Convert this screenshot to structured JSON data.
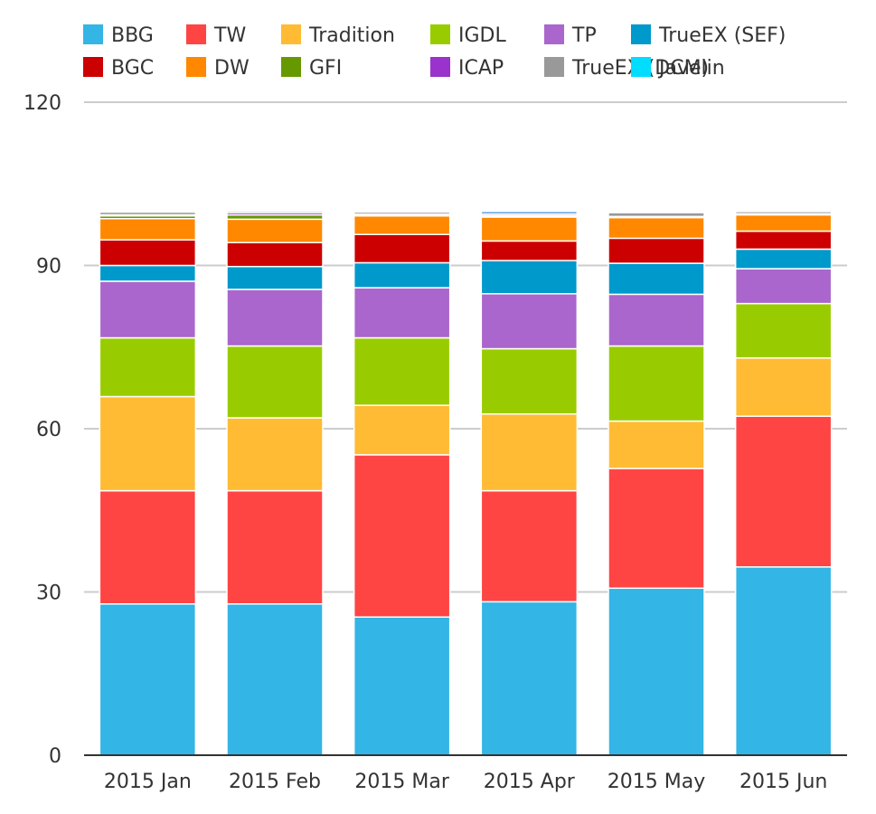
{
  "chart_data": {
    "type": "bar",
    "stacked": true,
    "categories": [
      "2015 Jan",
      "2015 Feb",
      "2015 Mar",
      "2015 Apr",
      "2015 May",
      "2015 Jun"
    ],
    "ylim": [
      0,
      120
    ],
    "yticks": [
      0,
      30,
      60,
      90,
      120
    ],
    "grid": true,
    "legend_position": "top",
    "series": [
      {
        "name": "BBG",
        "color": "#33B5E5",
        "values": [
          27.8,
          27.8,
          25.4,
          28.2,
          30.7,
          34.6
        ]
      },
      {
        "name": "TW",
        "color": "#FF4444",
        "values": [
          20.8,
          20.8,
          29.8,
          20.4,
          22.0,
          27.7
        ]
      },
      {
        "name": "Tradition",
        "color": "#FFBB33",
        "values": [
          17.3,
          13.4,
          9.1,
          14.1,
          8.7,
          10.7
        ]
      },
      {
        "name": "IGDL",
        "color": "#99CC00",
        "values": [
          10.8,
          13.2,
          12.4,
          12.0,
          13.8,
          10.0
        ]
      },
      {
        "name": "TP",
        "color": "#AA66CC",
        "values": [
          10.4,
          10.4,
          9.2,
          10.1,
          9.5,
          6.4
        ]
      },
      {
        "name": "TrueEX (SEF)",
        "color": "#0099CC",
        "values": [
          2.9,
          4.2,
          4.6,
          6.1,
          5.7,
          3.6
        ]
      },
      {
        "name": "BGC",
        "color": "#CC0000",
        "values": [
          4.7,
          4.4,
          5.2,
          3.6,
          4.6,
          3.3
        ]
      },
      {
        "name": "DW",
        "color": "#FF8800",
        "values": [
          3.9,
          4.3,
          3.4,
          4.4,
          3.8,
          3.0
        ]
      },
      {
        "name": "GFI",
        "color": "#669900",
        "values": [
          0.5,
          0.8,
          0.2,
          0.2,
          0.1,
          0.1
        ]
      },
      {
        "name": "ICAP",
        "color": "#9933CC",
        "values": [
          0.2,
          0.4,
          0.1,
          0.1,
          0.1,
          0.1
        ]
      },
      {
        "name": "TrueEX (DCM)",
        "color": "#999999",
        "values": [
          0.5,
          0.3,
          0.4,
          0.3,
          0.7,
          0.4
        ]
      },
      {
        "name": "Javelin",
        "color": "#0066CC",
        "values": [
          0.0,
          0.0,
          0.0,
          0.4,
          0.0,
          0.0
        ]
      }
    ],
    "legend_colors_override": {
      "Javelin": "#00DDFF"
    }
  }
}
